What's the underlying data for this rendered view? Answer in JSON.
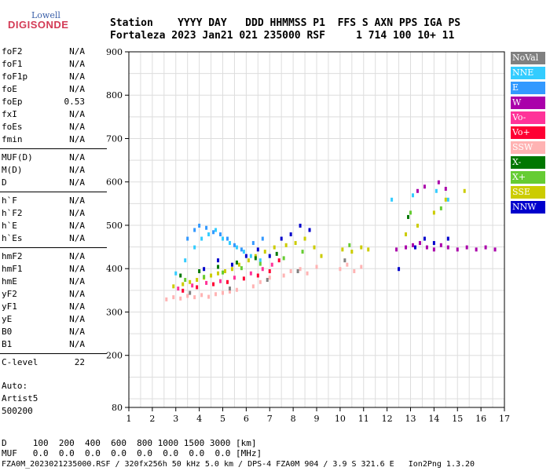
{
  "logo": {
    "top": "Lowell",
    "bottom": "DIGISONDE"
  },
  "header": {
    "line1": "Station    YYYY DAY   DDD HHMMSS P1  FFS S AXN PPS IGA PS",
    "line2": "Fortaleza 2023 Jan21 021 235000 RSF     1 714 100 10+ 11"
  },
  "params_groups": [
    [
      {
        "name": "foF2",
        "value": "N/A"
      },
      {
        "name": "foF1",
        "value": "N/A"
      },
      {
        "name": "foF1p",
        "value": "N/A"
      },
      {
        "name": "foE",
        "value": "N/A"
      },
      {
        "name": "foEp",
        "value": "0.53"
      },
      {
        "name": "fxI",
        "value": "N/A"
      },
      {
        "name": "foEs",
        "value": "N/A"
      },
      {
        "name": "fmin",
        "value": "N/A"
      }
    ],
    [
      {
        "name": "MUF(D)",
        "value": "N/A"
      },
      {
        "name": "M(D)",
        "value": "N/A"
      },
      {
        "name": "D",
        "value": "N/A"
      }
    ],
    [
      {
        "name": "h`F",
        "value": "N/A"
      },
      {
        "name": "h`F2",
        "value": "N/A"
      },
      {
        "name": "h`E",
        "value": "N/A"
      },
      {
        "name": "h`Es",
        "value": "N/A"
      }
    ],
    [
      {
        "name": "hmF2",
        "value": "N/A"
      },
      {
        "name": "hmF1",
        "value": "N/A"
      },
      {
        "name": "hmE",
        "value": "N/A"
      },
      {
        "name": "yF2",
        "value": "N/A"
      },
      {
        "name": "yF1",
        "value": "N/A"
      },
      {
        "name": "yE",
        "value": "N/A"
      },
      {
        "name": "B0",
        "value": "N/A"
      },
      {
        "name": "B1",
        "value": "N/A"
      }
    ],
    [
      {
        "name": "C-level",
        "value": "22"
      }
    ]
  ],
  "auto_block": {
    "line1": "Auto:",
    "line2": "Artist5",
    "line3": "500200"
  },
  "bottom_table": {
    "d_row": "D     100  200  400  600  800 1000 1500 3000 [km]",
    "muf_row": "MUF   0.0  0.0  0.0  0.0  0.0  0.0  0.0  0.0 [MHz]"
  },
  "footer": "FZA0M_2023021235000.RSF / 320fx256h 50 kHz 5.0 km / DPS-4 FZA0M 904 / 3.9 S 321.6 E   Ion2Png 1.3.20",
  "legend": [
    {
      "label": "NoVal",
      "color": "#808080"
    },
    {
      "label": "NNE",
      "color": "#33ccff"
    },
    {
      "label": "E",
      "color": "#3399ff"
    },
    {
      "label": "W",
      "color": "#aa00aa"
    },
    {
      "label": "Vo-",
      "color": "#ff3399"
    },
    {
      "label": "Vo+",
      "color": "#ff0033"
    },
    {
      "label": "SSW",
      "color": "#ffb3b3"
    },
    {
      "label": "X-",
      "color": "#007700"
    },
    {
      "label": "X+",
      "color": "#66cc33"
    },
    {
      "label": "SSE",
      "color": "#cccc00"
    },
    {
      "label": "NNW",
      "color": "#0000cc"
    }
  ],
  "chart_data": {
    "type": "scatter",
    "xlim": [
      1,
      17
    ],
    "ylim": [
      80,
      900
    ],
    "x_ticks": [
      1,
      2,
      3,
      4,
      5,
      6,
      7,
      8,
      9,
      10,
      11,
      12,
      13,
      14,
      15,
      16,
      17
    ],
    "y_ticks": [
      80,
      200,
      300,
      400,
      500,
      600,
      700,
      800,
      900
    ],
    "grid": true,
    "legend_placement": "right",
    "series": [
      {
        "name": "SSW",
        "color": "#ffb3b3",
        "points": [
          [
            2.6,
            330
          ],
          [
            2.9,
            335
          ],
          [
            3.2,
            332
          ],
          [
            3.5,
            338
          ],
          [
            3.8,
            335
          ],
          [
            4.1,
            340
          ],
          [
            4.4,
            336
          ],
          [
            4.7,
            342
          ],
          [
            5.0,
            345
          ],
          [
            5.3,
            348
          ],
          [
            5.6,
            352
          ],
          [
            6.3,
            360
          ],
          [
            6.6,
            370
          ],
          [
            7.0,
            380
          ],
          [
            7.6,
            385
          ],
          [
            7.9,
            395
          ],
          [
            8.3,
            400
          ],
          [
            8.6,
            390
          ],
          [
            9.0,
            405
          ],
          [
            10.0,
            400
          ],
          [
            10.3,
            410
          ],
          [
            10.6,
            395
          ],
          [
            10.9,
            405
          ]
        ]
      },
      {
        "name": "SSE",
        "color": "#cccc00",
        "points": [
          [
            2.9,
            360
          ],
          [
            3.3,
            365
          ],
          [
            3.6,
            370
          ],
          [
            3.9,
            375
          ],
          [
            4.2,
            380
          ],
          [
            4.5,
            385
          ],
          [
            4.8,
            390
          ],
          [
            5.1,
            395
          ],
          [
            5.4,
            400
          ],
          [
            5.7,
            410
          ],
          [
            6.1,
            420
          ],
          [
            6.4,
            430
          ],
          [
            6.8,
            440
          ],
          [
            7.2,
            450
          ],
          [
            7.7,
            455
          ],
          [
            8.1,
            460
          ],
          [
            8.5,
            470
          ],
          [
            8.9,
            450
          ],
          [
            9.2,
            430
          ],
          [
            10.1,
            445
          ],
          [
            10.5,
            440
          ],
          [
            10.9,
            450
          ],
          [
            11.2,
            445
          ],
          [
            12.8,
            480
          ],
          [
            13.3,
            500
          ],
          [
            14.0,
            530
          ],
          [
            14.5,
            560
          ],
          [
            15.3,
            580
          ]
        ]
      },
      {
        "name": "NNE",
        "color": "#33ccff",
        "points": [
          [
            3.0,
            390
          ],
          [
            3.4,
            420
          ],
          [
            3.8,
            450
          ],
          [
            4.1,
            470
          ],
          [
            4.4,
            480
          ],
          [
            4.7,
            490
          ],
          [
            5.0,
            470
          ],
          [
            5.3,
            460
          ],
          [
            5.6,
            450
          ],
          [
            5.9,
            440
          ],
          [
            6.2,
            430
          ],
          [
            6.6,
            420
          ],
          [
            12.2,
            560
          ],
          [
            13.1,
            570
          ],
          [
            14.1,
            580
          ],
          [
            14.6,
            560
          ]
        ]
      },
      {
        "name": "E",
        "color": "#3399ff",
        "points": [
          [
            3.5,
            470
          ],
          [
            3.8,
            490
          ],
          [
            4.0,
            500
          ],
          [
            4.3,
            495
          ],
          [
            4.6,
            485
          ],
          [
            4.9,
            480
          ],
          [
            5.2,
            470
          ],
          [
            5.5,
            455
          ],
          [
            5.8,
            445
          ],
          [
            6.3,
            460
          ],
          [
            6.7,
            470
          ]
        ]
      },
      {
        "name": "W",
        "color": "#aa00aa",
        "points": [
          [
            12.4,
            445
          ],
          [
            12.8,
            450
          ],
          [
            13.1,
            455
          ],
          [
            13.4,
            460
          ],
          [
            13.7,
            450
          ],
          [
            14.0,
            445
          ],
          [
            14.3,
            455
          ],
          [
            14.6,
            450
          ],
          [
            15.0,
            445
          ],
          [
            15.4,
            450
          ],
          [
            15.8,
            445
          ],
          [
            16.2,
            450
          ],
          [
            16.6,
            445
          ],
          [
            13.3,
            580
          ],
          [
            13.6,
            590
          ],
          [
            14.2,
            600
          ],
          [
            14.5,
            585
          ]
        ]
      },
      {
        "name": "NNW",
        "color": "#0000cc",
        "points": [
          [
            4.2,
            400
          ],
          [
            4.8,
            420
          ],
          [
            5.4,
            410
          ],
          [
            6.0,
            430
          ],
          [
            6.5,
            445
          ],
          [
            7.0,
            430
          ],
          [
            7.5,
            470
          ],
          [
            7.9,
            480
          ],
          [
            8.3,
            500
          ],
          [
            8.7,
            490
          ],
          [
            12.5,
            400
          ],
          [
            13.2,
            450
          ],
          [
            13.6,
            470
          ],
          [
            14.0,
            460
          ],
          [
            14.6,
            470
          ]
        ]
      },
      {
        "name": "Vo-",
        "color": "#ff3399",
        "points": [
          [
            3.1,
            355
          ],
          [
            3.7,
            362
          ],
          [
            4.3,
            368
          ],
          [
            4.9,
            372
          ],
          [
            5.5,
            380
          ],
          [
            6.2,
            390
          ],
          [
            6.7,
            400
          ],
          [
            7.1,
            410
          ]
        ]
      },
      {
        "name": "Vo+",
        "color": "#ff0033",
        "points": [
          [
            3.3,
            350
          ],
          [
            3.9,
            358
          ],
          [
            4.6,
            365
          ],
          [
            5.2,
            370
          ],
          [
            5.9,
            378
          ],
          [
            6.5,
            385
          ],
          [
            7.0,
            395
          ],
          [
            7.4,
            420
          ]
        ]
      },
      {
        "name": "X-",
        "color": "#007700",
        "points": [
          [
            3.2,
            385
          ],
          [
            4.0,
            395
          ],
          [
            4.8,
            405
          ],
          [
            5.6,
            415
          ],
          [
            6.4,
            425
          ],
          [
            7.3,
            435
          ],
          [
            12.9,
            520
          ]
        ]
      },
      {
        "name": "X+",
        "color": "#66cc33",
        "points": [
          [
            3.4,
            375
          ],
          [
            4.2,
            382
          ],
          [
            5.0,
            392
          ],
          [
            5.8,
            402
          ],
          [
            6.6,
            412
          ],
          [
            7.6,
            425
          ],
          [
            8.4,
            440
          ],
          [
            10.4,
            455
          ],
          [
            13.0,
            530
          ],
          [
            14.3,
            540
          ]
        ]
      },
      {
        "name": "NoVal",
        "color": "#808080",
        "points": [
          [
            3.6,
            345
          ],
          [
            5.3,
            355
          ],
          [
            6.9,
            375
          ],
          [
            8.2,
            395
          ],
          [
            10.2,
            420
          ]
        ]
      }
    ]
  }
}
